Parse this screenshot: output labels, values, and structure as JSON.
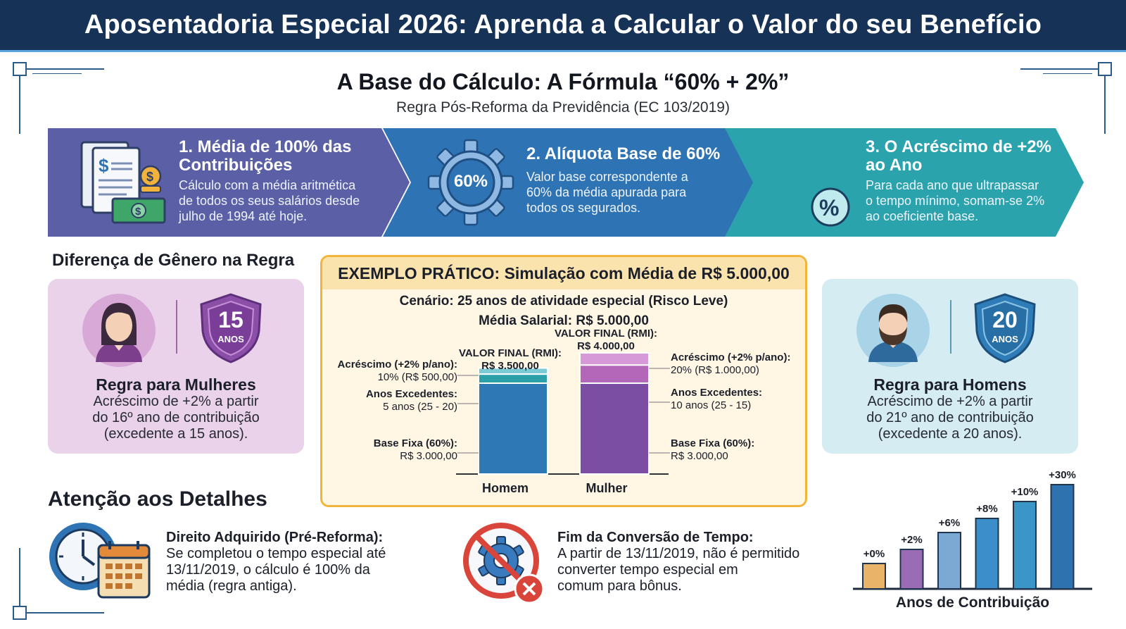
{
  "header": {
    "title": "Aposentadoria Especial 2026: Aprenda a Calcular o Valor do seu Benefício"
  },
  "section": {
    "title": "A Base do Cálculo: A Fórmula “60% + 2%”",
    "subtitle": "Regra Pós-Reforma da Previdência (EC 103/2019)"
  },
  "steps": [
    {
      "title_l1": "1. Média de 100% das",
      "title_l2": "Contribuições",
      "desc_l1": "Cálculo com a média aritmética",
      "desc_l2": "de todos os seus salários desde",
      "desc_l3": "julho de 1994 até hoje.",
      "color": "#5b5fa6"
    },
    {
      "title_l1": "2. Alíquota Base de 60%",
      "badge": "60%",
      "desc_l1": "Valor base correspondente a",
      "desc_l2": "60% da média apurada para",
      "desc_l3": "todos os segurados.",
      "color": "#2e74b4"
    },
    {
      "title_l1": "3. O Acréscimo de +2%",
      "title_l2": "ao Ano",
      "desc_l1": "Para cada ano que ultrapassar",
      "desc_l2": "o tempo mínimo, somam-se 2%",
      "desc_l3": "ao coeficiente base.",
      "color": "#2aa3ad"
    }
  ],
  "gender": {
    "title": "Diferença de Gênero na Regra",
    "women": {
      "years": "15",
      "years_unit": "ANOS",
      "heading": "Regra para Mulheres",
      "desc_l1": "Acréscimo de +2% a partir",
      "desc_l2": "do 16º ano de contribuição",
      "desc_l3": "(excedente a 15 anos).",
      "color": "#ead2ea"
    },
    "men": {
      "years": "20",
      "years_unit": "ANOS",
      "heading": "Regra para Homens",
      "desc_l1": "Acréscimo de +2% a partir",
      "desc_l2": "do 21º ano de contribuição",
      "desc_l3": "(excedente a 20 anos).",
      "color": "#d6ecf3"
    }
  },
  "example": {
    "title": "EXEMPLO PRÁTICO: Simulação com Média de R$ 5.000,00",
    "scenario": "Cenário: 25 anos de atividade especial (Risco Leve)",
    "salary": "Média Salarial: R$ 5.000,00",
    "homem": {
      "total_label": "VALOR FINAL (RMI):",
      "total_value": "R$ 3.500,00",
      "acr_label": "Acréscimo (+2% p/ano):",
      "acr_value": "10% (R$ 500,00)",
      "exc_label": "Anos Excedentes:",
      "exc_value": "5 anos (25 - 20)",
      "base_label": "Base Fixa (60%):",
      "base_value": "R$ 3.000,00"
    },
    "mulher": {
      "total_label": "VALOR FINAL (RMI):",
      "total_value": "R$ 4.000,00",
      "acr_label": "Acréscimo (+2% p/ano):",
      "acr_value": "20% (R$ 1.000,00)",
      "exc_label": "Anos Excedentes:",
      "exc_value": "10 anos (25 - 15)",
      "base_label": "Base Fixa (60%):",
      "base_value": "R$ 3.000,00"
    },
    "x_homem": "Homem",
    "x_mulher": "Mulher"
  },
  "chart_data": [
    {
      "type": "bar",
      "categories": [
        "Homem",
        "Mulher"
      ],
      "series": [
        {
          "name": "Base Fixa (60%)",
          "values": [
            3000,
            3000
          ]
        },
        {
          "name": "Anos Excedentes",
          "values": [
            5,
            10
          ]
        },
        {
          "name": "Acréscimo (+2% p/ano)",
          "values": [
            500,
            1000
          ]
        }
      ],
      "totals": [
        3500,
        4000
      ],
      "colors": {
        "homem": [
          "#2f78b6",
          "#2ba0a8",
          "#7ccad3"
        ],
        "mulher": [
          "#7c4ea3",
          "#b267b9",
          "#d79ad9"
        ]
      }
    },
    {
      "type": "bar",
      "categories": [
        "+0%",
        "+2%",
        "+6%",
        "+8%",
        "+10%",
        "+30%"
      ],
      "values": [
        0,
        2,
        6,
        8,
        10,
        30
      ],
      "xlabel": "Anos de Contribuição",
      "colors": [
        "#eab36a",
        "#9b6bb6",
        "#7ca8d4",
        "#3b8ec7",
        "#3a96c6",
        "#2f72b0"
      ]
    }
  ],
  "attention": {
    "title": "Atenção aos Detalhes",
    "items": [
      {
        "heading": "Direito Adquirido (Pré-Reforma):",
        "l1": "Se completou o tempo especial até",
        "l2": "13/11/2019, o cálculo é 100% da",
        "l3": "média (regra antiga)."
      },
      {
        "heading": "Fim da Conversão de Tempo:",
        "l1": "A partir de 13/11/2019, não é permitido",
        "l2": "converter tempo especial em",
        "l3": "comum para bônus."
      }
    ]
  }
}
